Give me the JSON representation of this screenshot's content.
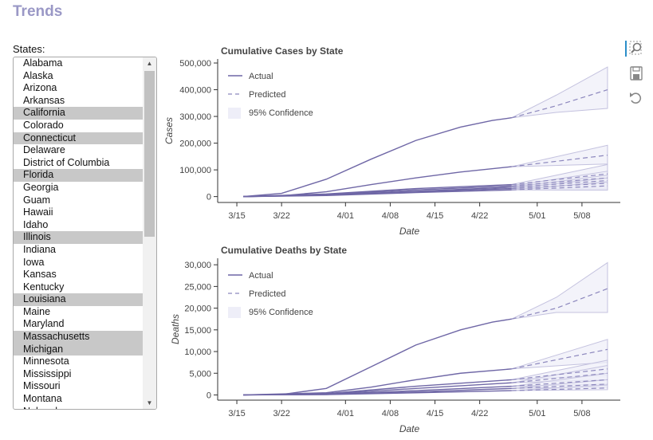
{
  "page": {
    "title": "Trends"
  },
  "states": {
    "label": "States:",
    "items": [
      {
        "name": "Alabama",
        "selected": false
      },
      {
        "name": "Alaska",
        "selected": false
      },
      {
        "name": "Arizona",
        "selected": false
      },
      {
        "name": "Arkansas",
        "selected": false
      },
      {
        "name": "California",
        "selected": true
      },
      {
        "name": "Colorado",
        "selected": false
      },
      {
        "name": "Connecticut",
        "selected": true
      },
      {
        "name": "Delaware",
        "selected": false
      },
      {
        "name": "District of Columbia",
        "selected": false
      },
      {
        "name": "Florida",
        "selected": true
      },
      {
        "name": "Georgia",
        "selected": false
      },
      {
        "name": "Guam",
        "selected": false
      },
      {
        "name": "Hawaii",
        "selected": false
      },
      {
        "name": "Idaho",
        "selected": false
      },
      {
        "name": "Illinois",
        "selected": true
      },
      {
        "name": "Indiana",
        "selected": false
      },
      {
        "name": "Iowa",
        "selected": false
      },
      {
        "name": "Kansas",
        "selected": false
      },
      {
        "name": "Kentucky",
        "selected": false
      },
      {
        "name": "Louisiana",
        "selected": true
      },
      {
        "name": "Maine",
        "selected": false
      },
      {
        "name": "Maryland",
        "selected": false
      },
      {
        "name": "Massachusetts",
        "selected": true
      },
      {
        "name": "Michigan",
        "selected": true
      },
      {
        "name": "Minnesota",
        "selected": false
      },
      {
        "name": "Mississippi",
        "selected": false
      },
      {
        "name": "Missouri",
        "selected": false
      },
      {
        "name": "Montana",
        "selected": false
      },
      {
        "name": "Nebraska",
        "selected": false
      }
    ]
  },
  "toolbar": {
    "tools": [
      "zoom-icon",
      "save-icon",
      "reset-icon"
    ]
  },
  "colors": {
    "actual": "#6f67a6",
    "predicted": "#8c87bd",
    "band_fill": "#eeeef8",
    "band_edge": "#c4c2df",
    "title": "#9a98c6"
  },
  "chart_data": [
    {
      "type": "line",
      "title": "Cumulative Cases by State",
      "xlabel": "Date",
      "ylabel": "Cases",
      "xticks": [
        "3/15",
        "3/22",
        "4/01",
        "4/08",
        "4/15",
        "4/22",
        "5/01",
        "5/08"
      ],
      "xtick_days": [
        0,
        7,
        17,
        24,
        31,
        38,
        47,
        54
      ],
      "yticks": [
        "0",
        "100,000",
        "200,000",
        "300,000",
        "400,000",
        "500,000"
      ],
      "ytick_values": [
        0,
        100000,
        200000,
        300000,
        400000,
        500000
      ],
      "xlim": [
        -3,
        60
      ],
      "ylim": [
        -22000,
        515000
      ],
      "legend": {
        "position": "top-left",
        "entries": [
          "Actual",
          "Predicted",
          "95% Confidence"
        ]
      },
      "series": [
        {
          "actual_x": [
            1,
            7,
            14,
            21,
            28,
            35,
            40,
            43
          ],
          "actual_y": [
            0,
            12000,
            65000,
            140000,
            210000,
            260000,
            285000,
            295000
          ],
          "pred_x": [
            43,
            50,
            58
          ],
          "pred_y": [
            295000,
            340000,
            400000
          ],
          "low": [
            295000,
            315000,
            330000
          ],
          "high": [
            295000,
            380000,
            485000
          ]
        },
        {
          "actual_x": [
            1,
            7,
            14,
            21,
            28,
            35,
            43
          ],
          "actual_y": [
            0,
            3000,
            18000,
            45000,
            70000,
            92000,
            112000
          ],
          "pred_x": [
            43,
            58
          ],
          "pred_y": [
            112000,
            155000
          ],
          "low": [
            112000,
            122000
          ],
          "high": [
            112000,
            192000
          ]
        },
        {
          "actual_x": [
            1,
            14,
            28,
            43
          ],
          "actual_y": [
            0,
            10000,
            30000,
            45000
          ],
          "pred_x": [
            43,
            58
          ],
          "pred_y": [
            45000,
            85000
          ],
          "low": [
            45000,
            42000
          ],
          "high": [
            45000,
            120000
          ]
        },
        {
          "actual_x": [
            1,
            14,
            28,
            43
          ],
          "actual_y": [
            0,
            8000,
            25000,
            40000
          ],
          "pred_x": [
            43,
            58
          ],
          "pred_y": [
            40000,
            70000
          ],
          "low": [
            40000,
            38000
          ],
          "high": [
            40000,
            95000
          ]
        },
        {
          "actual_x": [
            1,
            14,
            28,
            43
          ],
          "actual_y": [
            0,
            6000,
            20000,
            35000
          ],
          "pred_x": [
            43,
            58
          ],
          "pred_y": [
            35000,
            60000
          ],
          "low": [
            35000,
            32000
          ],
          "high": [
            35000,
            80000
          ]
        },
        {
          "actual_x": [
            1,
            14,
            28,
            43
          ],
          "actual_y": [
            0,
            5000,
            18000,
            30000
          ],
          "pred_x": [
            43,
            58
          ],
          "pred_y": [
            30000,
            50000
          ],
          "low": [
            30000,
            28000
          ],
          "high": [
            30000,
            70000
          ]
        },
        {
          "actual_x": [
            1,
            14,
            28,
            43
          ],
          "actual_y": [
            0,
            4000,
            15000,
            25000
          ],
          "pred_x": [
            43,
            58
          ],
          "pred_y": [
            25000,
            40000
          ],
          "low": [
            25000,
            24000
          ],
          "high": [
            25000,
            55000
          ]
        }
      ]
    },
    {
      "type": "line",
      "title": "Cumulative Deaths by State",
      "xlabel": "Date",
      "ylabel": "Deaths",
      "xticks": [
        "3/15",
        "3/22",
        "4/01",
        "4/08",
        "4/15",
        "4/22",
        "5/01",
        "5/08"
      ],
      "xtick_days": [
        0,
        7,
        17,
        24,
        31,
        38,
        47,
        54
      ],
      "yticks": [
        "0",
        "5,000",
        "10,000",
        "15,000",
        "20,000",
        "25,000",
        "30,000"
      ],
      "ytick_values": [
        0,
        5000,
        10000,
        15000,
        20000,
        25000,
        30000
      ],
      "xlim": [
        -3,
        60
      ],
      "ylim": [
        -1200,
        31500
      ],
      "legend": {
        "position": "top-left",
        "entries": [
          "Actual",
          "Predicted",
          "95% Confidence"
        ]
      },
      "series": [
        {
          "actual_x": [
            1,
            7,
            14,
            21,
            28,
            35,
            40,
            43
          ],
          "actual_y": [
            0,
            100,
            1500,
            6500,
            11500,
            15000,
            16800,
            17500
          ],
          "pred_x": [
            43,
            50,
            58
          ],
          "pred_y": [
            17500,
            20000,
            24500
          ],
          "low": [
            17500,
            19000,
            19000
          ],
          "high": [
            17500,
            22500,
            30500
          ]
        },
        {
          "actual_x": [
            1,
            14,
            21,
            28,
            35,
            43
          ],
          "actual_y": [
            0,
            500,
            1800,
            3500,
            5000,
            6000
          ],
          "pred_x": [
            43,
            58
          ],
          "pred_y": [
            6000,
            10500
          ],
          "low": [
            6000,
            7500
          ],
          "high": [
            6000,
            12800
          ]
        },
        {
          "actual_x": [
            1,
            14,
            28,
            43
          ],
          "actual_y": [
            0,
            300,
            2000,
            3500
          ],
          "pred_x": [
            43,
            58
          ],
          "pred_y": [
            3500,
            6000
          ],
          "low": [
            3500,
            4500
          ],
          "high": [
            3500,
            8000
          ]
        },
        {
          "actual_x": [
            1,
            14,
            28,
            43
          ],
          "actual_y": [
            0,
            200,
            1500,
            2800
          ],
          "pred_x": [
            43,
            58
          ],
          "pred_y": [
            2800,
            5000
          ],
          "low": [
            2800,
            3500
          ],
          "high": [
            2800,
            6800
          ]
        },
        {
          "actual_x": [
            1,
            14,
            28,
            43
          ],
          "actual_y": [
            0,
            150,
            1000,
            2000
          ],
          "pred_x": [
            43,
            58
          ],
          "pred_y": [
            2000,
            3500
          ],
          "low": [
            2000,
            2500
          ],
          "high": [
            2000,
            5000
          ]
        },
        {
          "actual_x": [
            1,
            14,
            28,
            43
          ],
          "actual_y": [
            0,
            100,
            700,
            1500
          ],
          "pred_x": [
            43,
            58
          ],
          "pred_y": [
            1500,
            2500
          ],
          "low": [
            1500,
            1800
          ],
          "high": [
            1500,
            3500
          ]
        },
        {
          "actual_x": [
            1,
            14,
            28,
            43
          ],
          "actual_y": [
            0,
            80,
            500,
            1000
          ],
          "pred_x": [
            43,
            58
          ],
          "pred_y": [
            1000,
            1600
          ],
          "low": [
            1000,
            1200
          ],
          "high": [
            1000,
            2300
          ]
        }
      ]
    }
  ]
}
